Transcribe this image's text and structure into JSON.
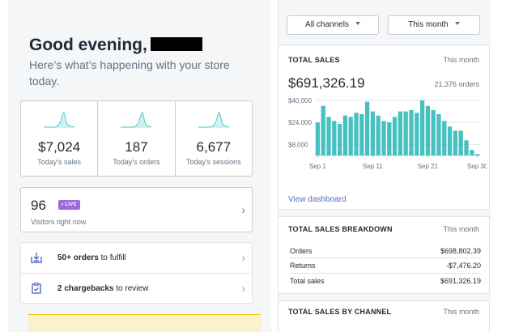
{
  "greeting": {
    "title": "Good evening,",
    "subtitle": "Here’s what’s happening with your store today."
  },
  "stats": [
    {
      "value": "$7,024",
      "label": "Today's sales"
    },
    {
      "value": "187",
      "label": "Today's orders"
    },
    {
      "value": "6,677",
      "label": "Today's sessions"
    }
  ],
  "visitors": {
    "count": "96",
    "badge": "• LIVE",
    "label": "Visitors right now"
  },
  "tasks": [
    {
      "bold": "50+ orders",
      "rest": " to fulfill",
      "icon": "fulfill-icon"
    },
    {
      "bold": "2 chargebacks",
      "rest": " to review",
      "icon": "clipboard-icon"
    }
  ],
  "filters": {
    "channel": "All channels",
    "period": "This month"
  },
  "total_sales": {
    "title": "TOTAL SALES",
    "period": "This month",
    "amount": "$691,326.19",
    "orders": "21,376 orders",
    "link": "View dashboard"
  },
  "chart_data": {
    "type": "bar",
    "x": [
      "Sep 1",
      "Sep 2",
      "Sep 3",
      "Sep 4",
      "Sep 5",
      "Sep 6",
      "Sep 7",
      "Sep 8",
      "Sep 9",
      "Sep 10",
      "Sep 11",
      "Sep 12",
      "Sep 13",
      "Sep 14",
      "Sep 15",
      "Sep 16",
      "Sep 17",
      "Sep 18",
      "Sep 19",
      "Sep 20",
      "Sep 21",
      "Sep 22",
      "Sep 23",
      "Sep 24",
      "Sep 25",
      "Sep 26",
      "Sep 27",
      "Sep 28",
      "Sep 29",
      "Sep 30"
    ],
    "values": [
      24000,
      36000,
      28000,
      25000,
      23000,
      29000,
      28000,
      31000,
      30000,
      39000,
      32000,
      29000,
      25000,
      24000,
      28000,
      32000,
      32000,
      33000,
      31000,
      40000,
      36000,
      33000,
      30000,
      25000,
      21000,
      18000,
      18000,
      11000,
      4000,
      1000
    ],
    "ylim": [
      0,
      40000
    ],
    "yticks": [
      "$40,000",
      "$24,000",
      "$8,000"
    ],
    "ytick_values": [
      40000,
      24000,
      8000
    ],
    "xticks": [
      "Sep 1",
      "Sep 11",
      "Sep 21",
      "Sep 30"
    ],
    "grid": true,
    "color": "#47c1bf"
  },
  "breakdown": {
    "title": "TOTAL SALES BREAKDOWN",
    "period": "This month",
    "rows": [
      {
        "label": "Orders",
        "amount": "$698,802.39"
      },
      {
        "label": "Returns",
        "amount": "-$7,476.20"
      },
      {
        "label": "Total sales",
        "amount": "$691,326.19"
      }
    ]
  },
  "by_channel": {
    "title": "TOTAL SALES BY CHANNEL",
    "period": "This month"
  },
  "colors": {
    "accent": "#47c1bf",
    "live_badge": "#9c6ade",
    "link": "#5c6ac4"
  }
}
